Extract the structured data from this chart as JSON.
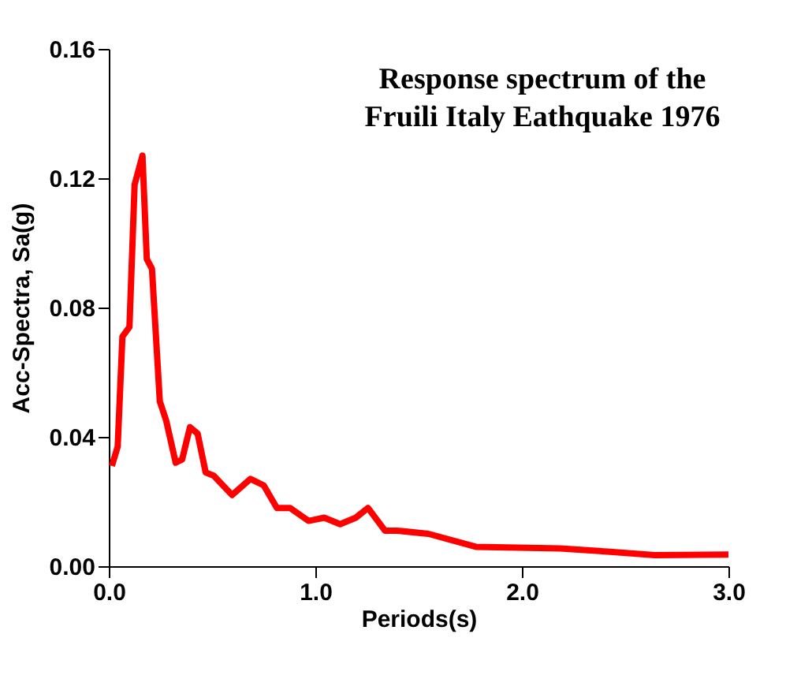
{
  "chart_data": {
    "type": "line",
    "title": "Response spectrum of the\nFruili Italy Eathquake 1976",
    "xlabel": "Periods(s)",
    "ylabel": "Acc-Spectra,  Sa(g)",
    "x": [
      0.015,
      0.043,
      0.066,
      0.1,
      0.125,
      0.163,
      0.184,
      0.209,
      0.247,
      0.278,
      0.324,
      0.355,
      0.393,
      0.43,
      0.469,
      0.508,
      0.597,
      0.686,
      0.75,
      0.814,
      0.878,
      0.967,
      1.043,
      1.12,
      1.196,
      1.255,
      1.337,
      1.395,
      1.548,
      1.777,
      2.185,
      2.414,
      2.643,
      3.0
    ],
    "series": [
      {
        "color": "#ff0000",
        "values": [
          0.031,
          0.037,
          0.071,
          0.074,
          0.118,
          0.127,
          0.095,
          0.092,
          0.051,
          0.045,
          0.032,
          0.033,
          0.043,
          0.041,
          0.029,
          0.028,
          0.022,
          0.027,
          0.025,
          0.018,
          0.018,
          0.014,
          0.015,
          0.013,
          0.015,
          0.018,
          0.011,
          0.011,
          0.01,
          0.006,
          0.0055,
          0.0045,
          0.0034,
          0.0036
        ]
      }
    ],
    "xlim": [
      0.0,
      3.0
    ],
    "xticks": [
      {
        "value": 0,
        "label": "0.0"
      },
      {
        "value": 1,
        "label": "1.0"
      },
      {
        "value": 2,
        "label": "2.0"
      },
      {
        "value": 3,
        "label": "3.0"
      }
    ],
    "ylim": [
      0.0,
      0.16
    ],
    "yticks": [
      {
        "value": 0,
        "label": "0.00"
      },
      0.04,
      0.08,
      0.12,
      0.16
    ],
    "grid": false,
    "marker": "none",
    "line_style": "solid"
  }
}
